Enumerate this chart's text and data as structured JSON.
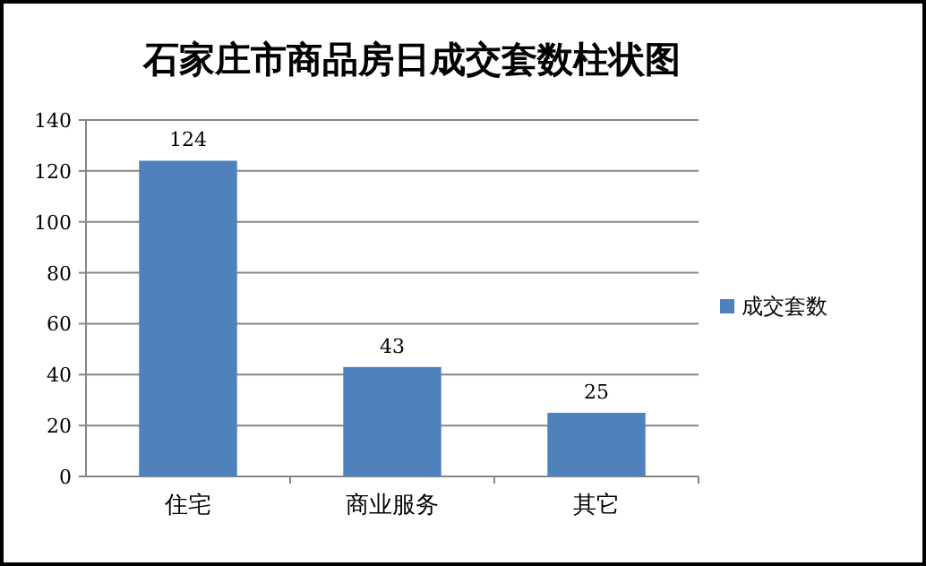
{
  "chart_data": {
    "type": "bar",
    "title": "石家庄市商品房日成交套数柱状图",
    "categories": [
      "住宅",
      "商业服务",
      "其它"
    ],
    "series": [
      {
        "name": "成交套数",
        "color": "#4f81bd",
        "values": [
          124,
          43,
          25
        ]
      }
    ],
    "ylim": [
      0,
      140
    ],
    "yticks": [
      0,
      20,
      40,
      60,
      80,
      100,
      120,
      140
    ],
    "grid": "y",
    "legend": "right",
    "data_labels": true
  }
}
